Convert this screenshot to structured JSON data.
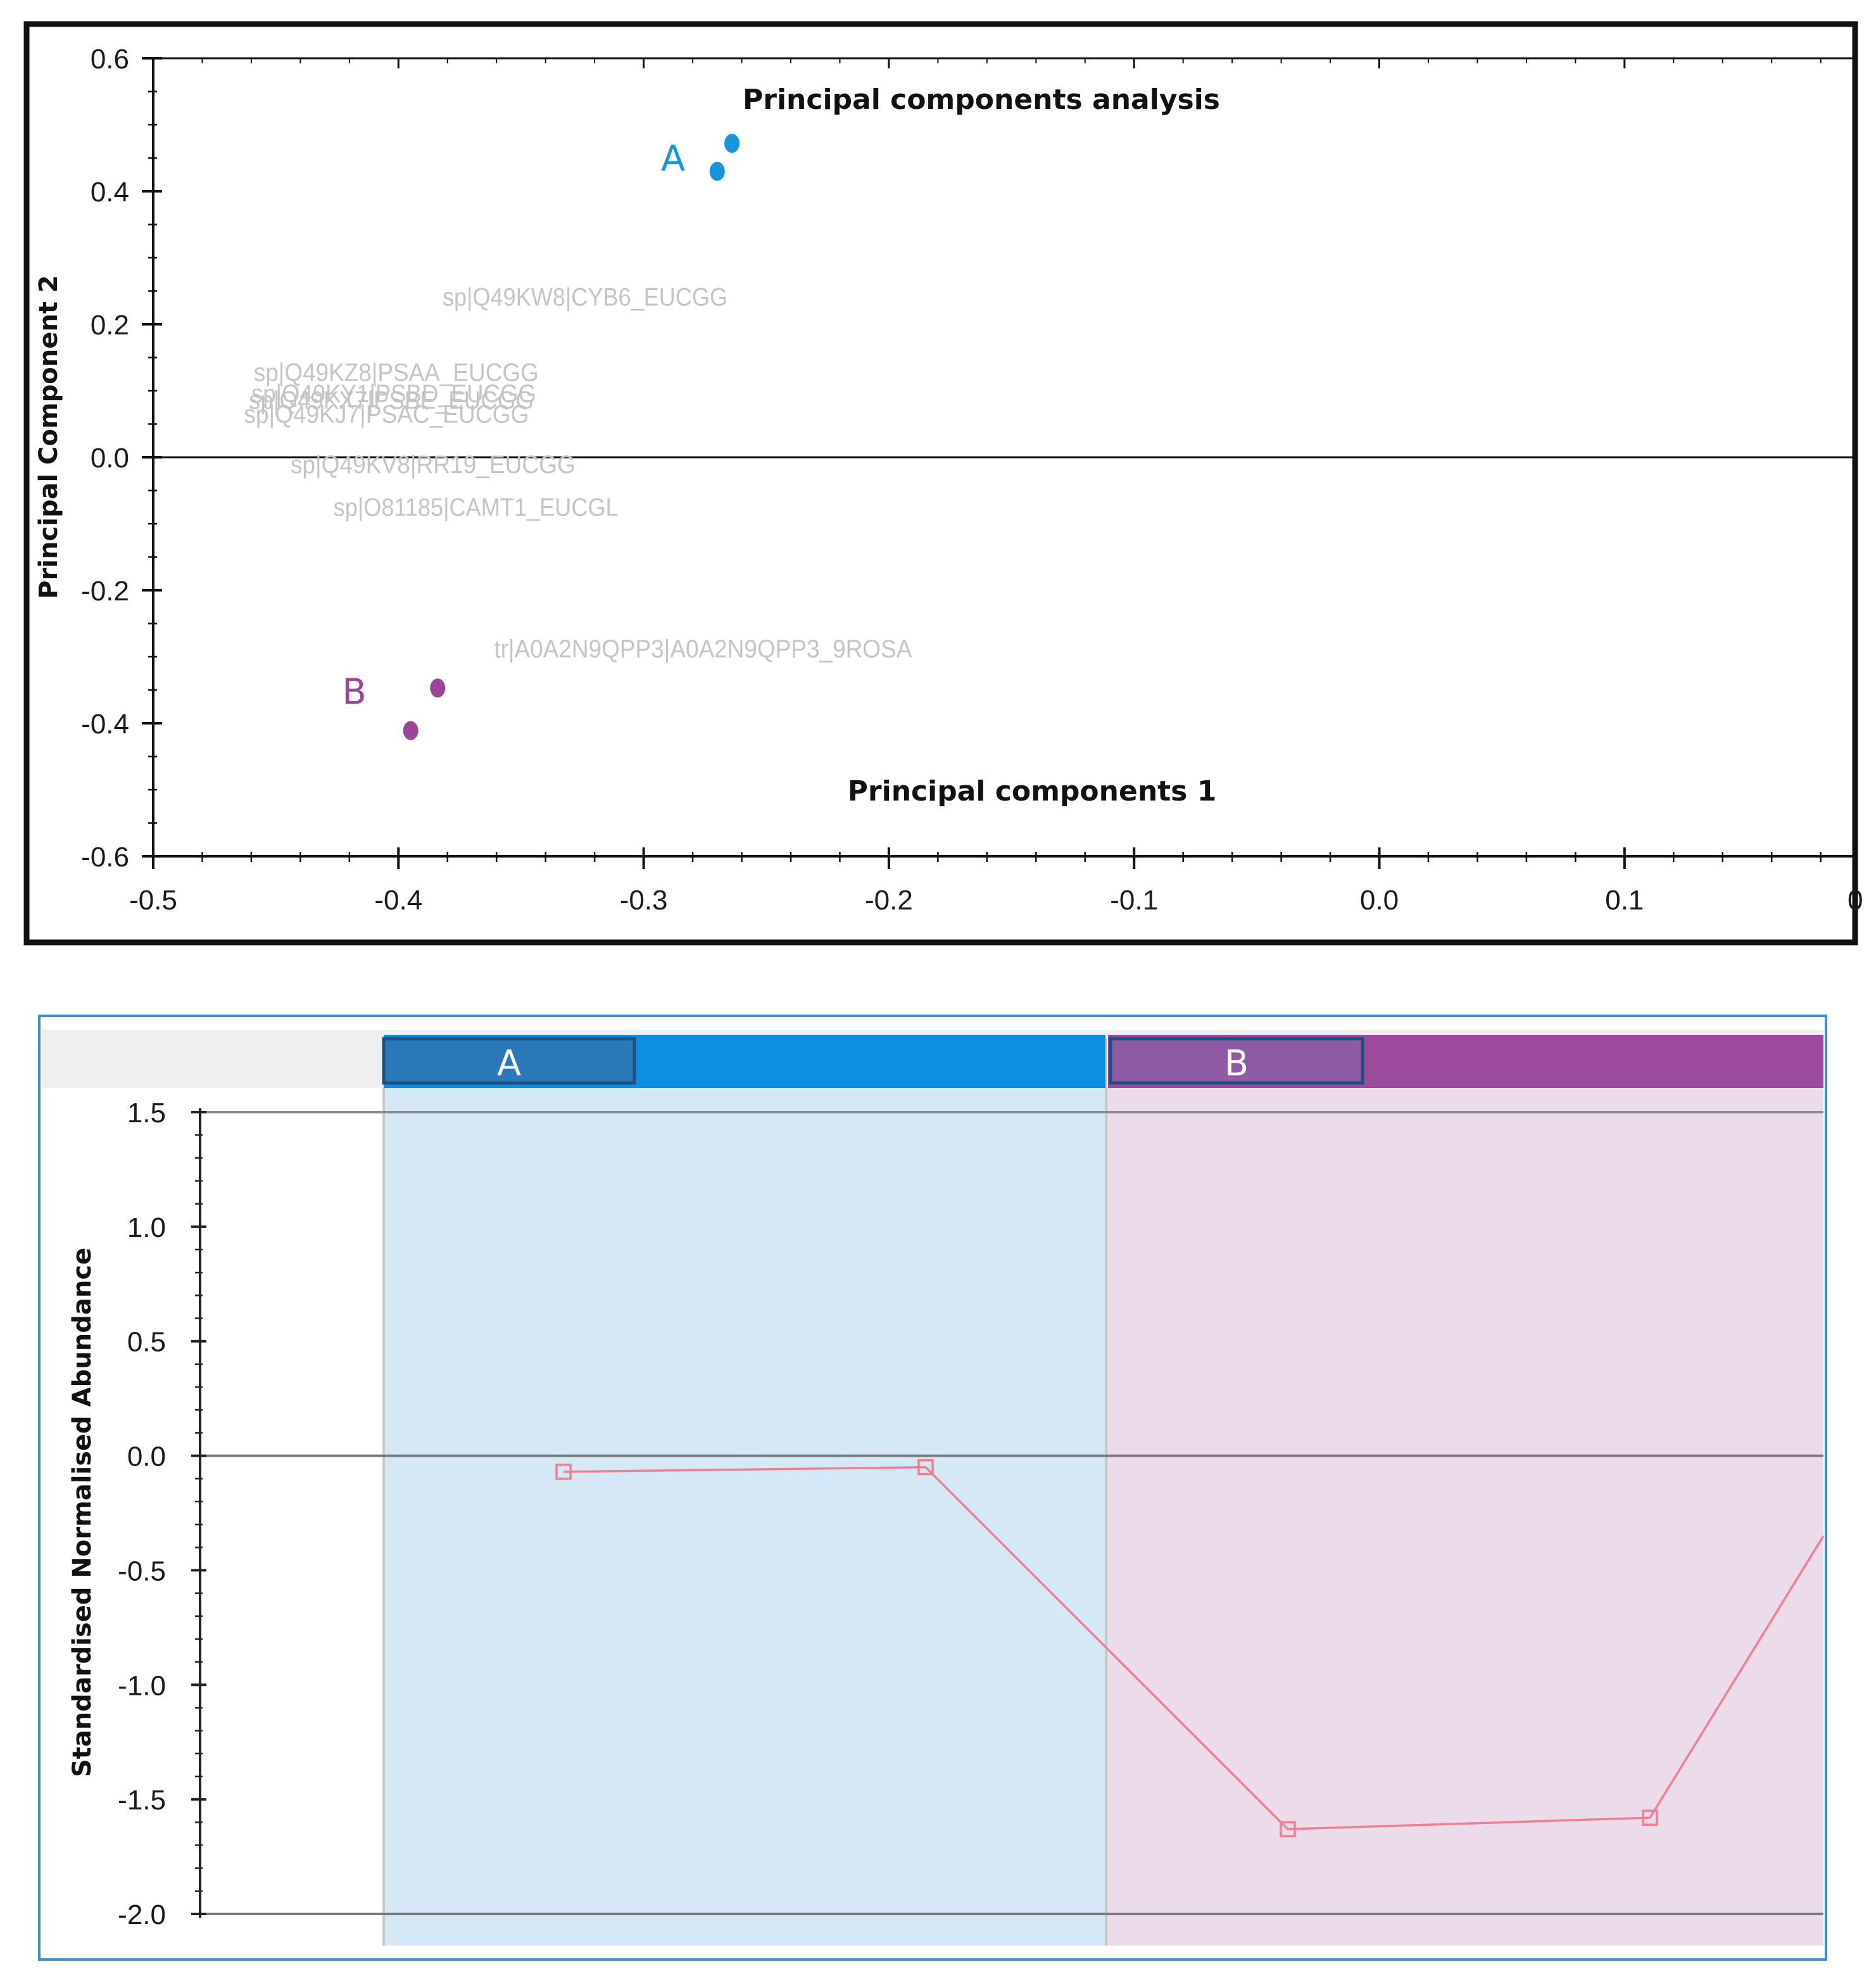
{
  "colors": {
    "group_a": "#1496de",
    "group_a_bar": "#0b8fe0",
    "group_a_box": "#2a78b8",
    "group_a_band": "#d5e8f5",
    "group_b": "#9c4699",
    "group_b_bar": "#9c4a9b",
    "group_b_box": "#8e5aa4",
    "group_b_band": "#ecdbeb",
    "trend_line": "#f07f8f",
    "label_gray": "#c4c4c4",
    "frame": "#111111",
    "panel_border": "#3c8fd0"
  },
  "chart_data": [
    {
      "type": "scatter",
      "title": "Principal components analysis",
      "xlabel": "Principal components 1",
      "ylabel": "Principal Component 2",
      "xlim": [
        -0.5,
        0.193
      ],
      "ylim": [
        -0.6,
        0.6
      ],
      "x_ticks": [
        -0.5,
        -0.4,
        -0.3,
        -0.2,
        -0.1,
        0.0,
        0.1
      ],
      "x_tick_labels": [
        "-0.5",
        "-0.4",
        "-0.3",
        "-0.2",
        "-0.1",
        "0.0",
        "0.1"
      ],
      "cut_tick_label": "0",
      "y_ticks": [
        0.6,
        0.4,
        0.2,
        0.0,
        -0.2,
        -0.4,
        -0.6
      ],
      "y_tick_labels": [
        "0.6",
        "0.4",
        "0.2",
        "0.0",
        "-0.2",
        "-0.4",
        "-0.6"
      ],
      "series": [
        {
          "name": "A",
          "color": "#1496de",
          "points": [
            [
              -0.264,
              0.472
            ],
            [
              -0.27,
              0.43
            ]
          ]
        },
        {
          "name": "B",
          "color": "#9c4699",
          "points": [
            [
              -0.384,
              -0.347
            ],
            [
              -0.395,
              -0.411
            ]
          ]
        }
      ],
      "group_labels": [
        {
          "text": "A",
          "x": -0.288,
          "y": 0.45,
          "color": "#1496de"
        },
        {
          "text": "B",
          "x": -0.418,
          "y": -0.352,
          "color": "#9c4699"
        }
      ],
      "protein_labels": [
        {
          "text": "sp|Q49KW8|CYB6_EUCGG",
          "x": -0.382,
          "y": 0.228
        },
        {
          "text": "sp|Q49KZ8|PSAA_EUCGG",
          "x": -0.459,
          "y": 0.115
        },
        {
          "text": "sp|Q49KY1|PSBD_EUCGG",
          "x": -0.46,
          "y": 0.083
        },
        {
          "text": "sp|Q49KX7|PSBE_EUCGG",
          "x": -0.461,
          "y": 0.073
        },
        {
          "text": "sp|Q49KJ7|PSAC_EUCGG",
          "x": -0.463,
          "y": 0.052
        },
        {
          "text": "sp|Q49KV8|RR19_EUCGG",
          "x": -0.444,
          "y": -0.024
        },
        {
          "text": "sp|O81185|CAMT1_EUCGL",
          "x": -0.4265,
          "y": -0.088
        },
        {
          "text": "tr|A0A2N9QPP3|A0A2N9QPP3_9ROSA",
          "x": -0.361,
          "y": -0.301
        }
      ]
    },
    {
      "type": "line",
      "ylabel": "Standardised Normalised Abundance",
      "ylim": [
        -2.0,
        1.5
      ],
      "y_ticks": [
        1.5,
        1.0,
        0.5,
        0.0,
        -0.5,
        -1.0,
        -1.5,
        -2.0
      ],
      "y_tick_labels": [
        "1.5",
        "1.0",
        "0.5",
        "0.0",
        "-0.5",
        "-1.0",
        "-1.5",
        "-2.0"
      ],
      "groups": [
        {
          "name": "A",
          "color": "#0b8fe0"
        },
        {
          "name": "B",
          "color": "#9c4a9b"
        }
      ],
      "x": [
        1,
        2,
        3,
        4
      ],
      "series": [
        {
          "name": "abundance",
          "color": "#f07f8f",
          "values": [
            -0.07,
            -0.05,
            -1.63,
            -1.58
          ]
        }
      ],
      "line_exit_value": -0.35
    }
  ]
}
